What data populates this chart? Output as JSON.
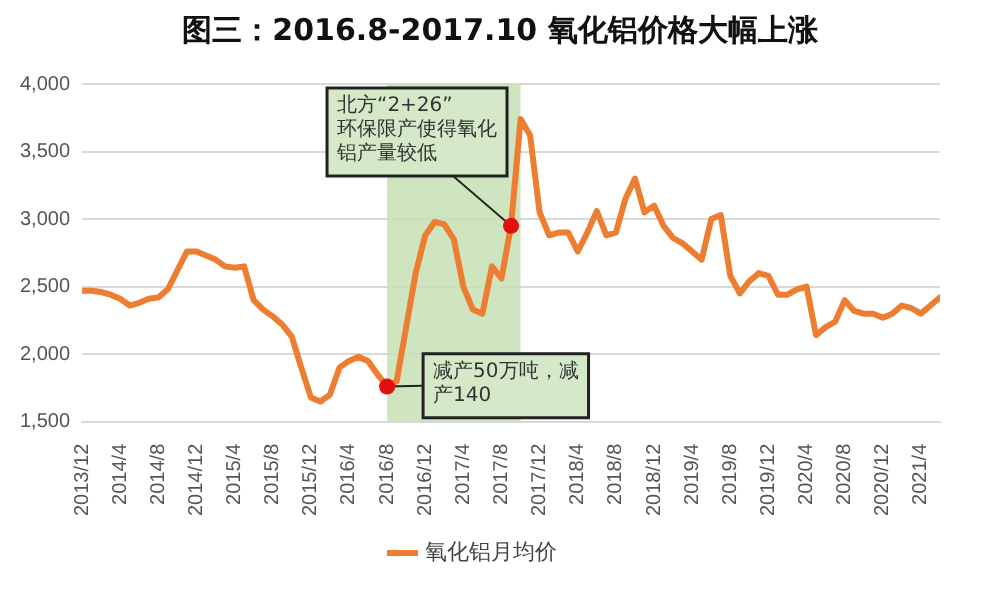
{
  "chart_data": {
    "type": "line",
    "title": "图三：2016.8-2017.10 氧化铝价格大幅上涨",
    "x": [
      "2013-12",
      "2014-01",
      "2014-02",
      "2014-03",
      "2014-04",
      "2014-05",
      "2014-06",
      "2014-07",
      "2014-08",
      "2014-09",
      "2014-10",
      "2014-11",
      "2014-12",
      "2015-01",
      "2015-02",
      "2015-03",
      "2015-04",
      "2015-05",
      "2015-06",
      "2015-07",
      "2015-08",
      "2015-09",
      "2015-10",
      "2015-11",
      "2015-12",
      "2016-01",
      "2016-02",
      "2016-03",
      "2016-04",
      "2016-05",
      "2016-06",
      "2016-07",
      "2016-08",
      "2016-09",
      "2016-10",
      "2016-11",
      "2016-12",
      "2017-01",
      "2017-02",
      "2017-03",
      "2017-04",
      "2017-05",
      "2017-06",
      "2017-07",
      "2017-08",
      "2017-09",
      "2017-10",
      "2017-11",
      "2017-12",
      "2018-01",
      "2018-02",
      "2018-03",
      "2018-04",
      "2018-05",
      "2018-06",
      "2018-07",
      "2018-08",
      "2018-09",
      "2018-10",
      "2018-11",
      "2018-12",
      "2019-01",
      "2019-02",
      "2019-03",
      "2019-04",
      "2019-05",
      "2019-06",
      "2019-07",
      "2019-08",
      "2019-09",
      "2019-10",
      "2019-11",
      "2019-12",
      "2020-01",
      "2020-02",
      "2020-03",
      "2020-04",
      "2020-05",
      "2020-06",
      "2020-07",
      "2020-08",
      "2020-09",
      "2020-10",
      "2020-11",
      "2020-12",
      "2021-01",
      "2021-02",
      "2021-03",
      "2021-04",
      "2021-05",
      "2021-06"
    ],
    "series": [
      {
        "name": "氧化铝月均价",
        "color": "#ed7d31",
        "values": [
          2470,
          2470,
          2460,
          2440,
          2410,
          2360,
          2380,
          2410,
          2420,
          2480,
          2620,
          2760,
          2760,
          2730,
          2700,
          2650,
          2640,
          2650,
          2400,
          2330,
          2280,
          2220,
          2130,
          1900,
          1680,
          1650,
          1700,
          1900,
          1950,
          1980,
          1950,
          1850,
          1760,
          1800,
          2200,
          2600,
          2880,
          2980,
          2960,
          2850,
          2500,
          2330,
          2300,
          2650,
          2560,
          2950,
          3740,
          3620,
          3050,
          2880,
          2900,
          2900,
          2760,
          2900,
          3060,
          2880,
          2900,
          3150,
          3300,
          3050,
          3100,
          2950,
          2860,
          2820,
          2760,
          2700,
          3000,
          3030,
          2580,
          2450,
          2540,
          2600,
          2580,
          2440,
          2440,
          2480,
          2500,
          2140,
          2200,
          2240,
          2400,
          2320,
          2300,
          2300,
          2270,
          2300,
          2360,
          2340,
          2300,
          2360,
          2420
        ]
      }
    ],
    "xlim": [
      "2013-12",
      "2021-06"
    ],
    "xticks": [
      {
        "value": "2013-12",
        "label": "2013/12"
      },
      {
        "value": "2014-04",
        "label": "2014/4"
      },
      {
        "value": "2014-08",
        "label": "2014/8"
      },
      {
        "value": "2014-12",
        "label": "2014/12"
      },
      {
        "value": "2015-04",
        "label": "2015/4"
      },
      {
        "value": "2015-08",
        "label": "2015/8"
      },
      {
        "value": "2015-12",
        "label": "2015/12"
      },
      {
        "value": "2016-04",
        "label": "2016/4"
      },
      {
        "value": "2016-08",
        "label": "2016/8"
      },
      {
        "value": "2016-12",
        "label": "2016/12"
      },
      {
        "value": "2017-04",
        "label": "2017/4"
      },
      {
        "value": "2017-08",
        "label": "2017/8"
      },
      {
        "value": "2017-12",
        "label": "2017/12"
      },
      {
        "value": "2018-04",
        "label": "2018/4"
      },
      {
        "value": "2018-08",
        "label": "2018/8"
      },
      {
        "value": "2018-12",
        "label": "2018/12"
      },
      {
        "value": "2019-04",
        "label": "2019/4"
      },
      {
        "value": "2019-08",
        "label": "2019/8"
      },
      {
        "value": "2019-12",
        "label": "2019/12"
      },
      {
        "value": "2020-04",
        "label": "2020/4"
      },
      {
        "value": "2020-08",
        "label": "2020/8"
      },
      {
        "value": "2020-12",
        "label": "2020/12"
      },
      {
        "value": "2021-04",
        "label": "2021/4"
      }
    ],
    "ylim": [
      1500,
      4000
    ],
    "yticks": [
      {
        "value": 1500,
        "label": "1,500"
      },
      {
        "value": 2000,
        "label": "2,000"
      },
      {
        "value": 2500,
        "label": "2,500"
      },
      {
        "value": 3000,
        "label": "3,000"
      },
      {
        "value": 3500,
        "label": "3,500"
      },
      {
        "value": 4000,
        "label": "4,000"
      }
    ],
    "bands": [
      {
        "axis": "x",
        "from": "2016-08",
        "to": "2017-10",
        "color": "#c5e0b4"
      }
    ],
    "annotations": [
      {
        "text": "减产50万吨，减产140",
        "x": "2016-08",
        "y": 1760
      },
      {
        "text": "北方“2+26”环保限产使得氧化铝产量较低",
        "x": "2017-09",
        "y": 2950
      }
    ],
    "grid": "y",
    "legend": "bottom",
    "marker": "none",
    "line_style": "solid"
  }
}
